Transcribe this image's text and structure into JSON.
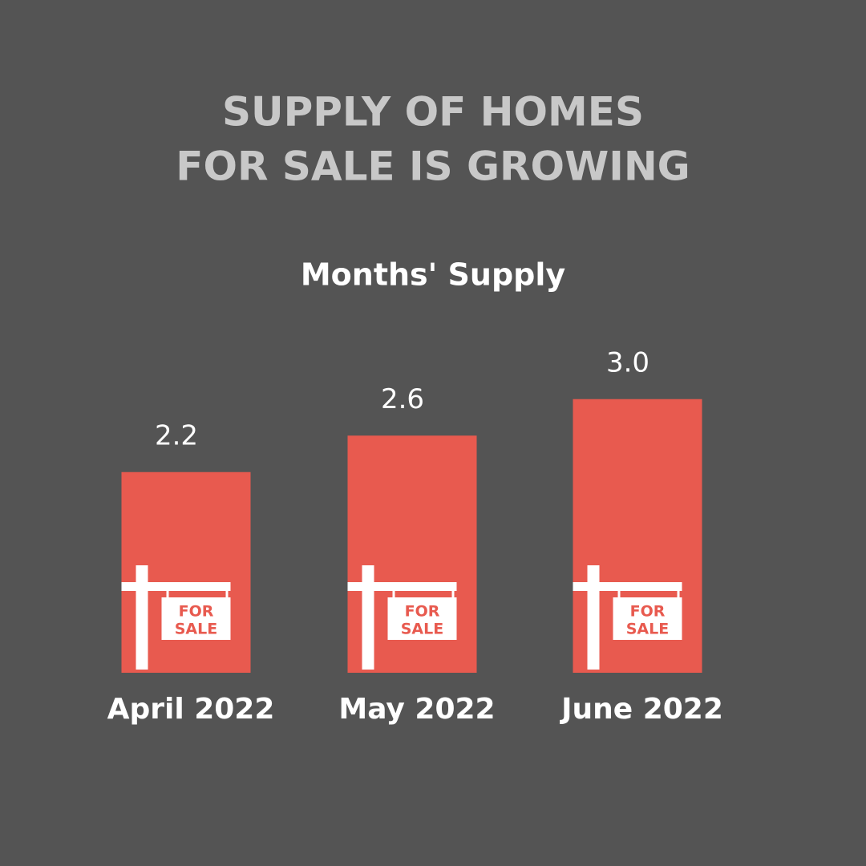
{
  "chart_data": {
    "type": "bar",
    "title": [
      "SUPPLY OF HOMES",
      "FOR SALE IS GROWING"
    ],
    "subtitle": "Months' Supply",
    "categories": [
      "April 2022",
      "May 2022",
      "June 2022"
    ],
    "values": [
      2.2,
      2.6,
      3.0
    ],
    "value_labels": [
      "2.2",
      "2.6",
      "3.0"
    ],
    "color": "#e85a4f",
    "ylim": [
      0,
      3.2
    ],
    "sign_text": [
      "FOR",
      "SALE"
    ]
  }
}
